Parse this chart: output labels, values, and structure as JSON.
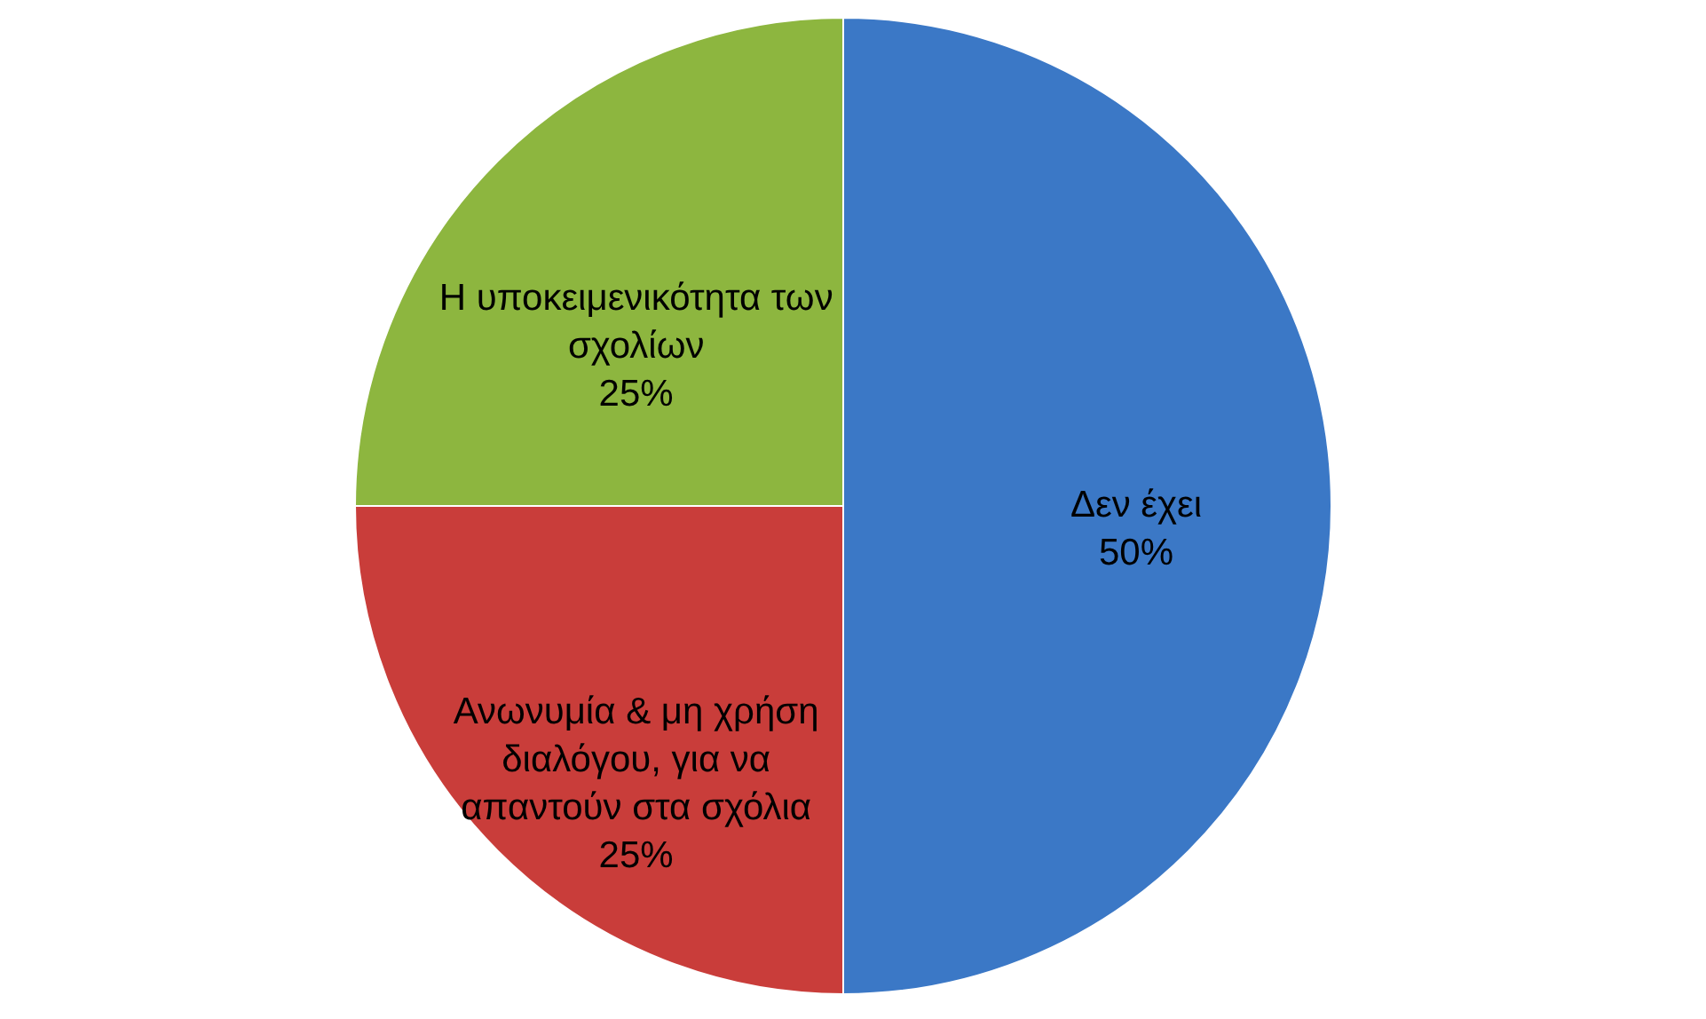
{
  "chart_data": {
    "type": "pie",
    "categories": [
      "Δεν έχει",
      "Ανωνυμία & μη χρήση διαλόγου, για να απαντούν στα σχόλια",
      "Η υποκειμενικότητα των σχολίων"
    ],
    "values": [
      50,
      25,
      25
    ],
    "value_labels": [
      "50%",
      "25%",
      "25%"
    ],
    "colors": [
      "#3b78c6",
      "#c93d3a",
      "#8db63f"
    ],
    "legend": false
  }
}
